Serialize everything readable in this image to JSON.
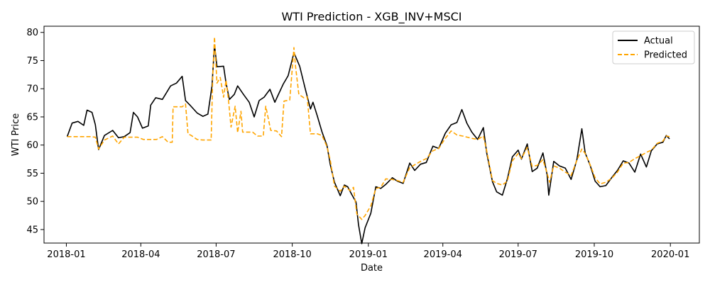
{
  "chart_data": {
    "type": "line",
    "title": "WTI Prediction - XGB_INV+MSCI",
    "xlabel": "Date",
    "ylabel": "WTI Price",
    "xlim": [
      "2017-12-05",
      "2020-02-05"
    ],
    "ylim": [
      42.6,
      81.1
    ],
    "x_ticks": [
      "2018-01",
      "2018-04",
      "2018-07",
      "2018-10",
      "2019-01",
      "2019-04",
      "2019-07",
      "2019-10",
      "2020-01"
    ],
    "y_ticks": [
      45,
      50,
      55,
      60,
      65,
      70,
      75,
      80
    ],
    "grid": false,
    "legend": {
      "position": "top-right"
    },
    "series": [
      {
        "name": "Actual",
        "color": "#000000",
        "style": "solid",
        "points": [
          [
            "2018-01-02",
            61.5
          ],
          [
            "2018-01-08",
            63.9
          ],
          [
            "2018-01-15",
            64.2
          ],
          [
            "2018-01-22",
            63.5
          ],
          [
            "2018-01-26",
            66.2
          ],
          [
            "2018-02-01",
            65.8
          ],
          [
            "2018-02-05",
            63.6
          ],
          [
            "2018-02-09",
            59.2
          ],
          [
            "2018-02-16",
            61.7
          ],
          [
            "2018-02-26",
            62.6
          ],
          [
            "2018-03-05",
            61.3
          ],
          [
            "2018-03-12",
            61.5
          ],
          [
            "2018-03-19",
            62.2
          ],
          [
            "2018-03-23",
            65.8
          ],
          [
            "2018-03-28",
            65.0
          ],
          [
            "2018-04-03",
            63.0
          ],
          [
            "2018-04-10",
            63.4
          ],
          [
            "2018-04-13",
            67.1
          ],
          [
            "2018-04-19",
            68.4
          ],
          [
            "2018-04-27",
            68.1
          ],
          [
            "2018-05-07",
            70.5
          ],
          [
            "2018-05-14",
            71.0
          ],
          [
            "2018-05-21",
            72.2
          ],
          [
            "2018-05-25",
            67.9
          ],
          [
            "2018-05-31",
            67.0
          ],
          [
            "2018-06-08",
            65.7
          ],
          [
            "2018-06-15",
            65.1
          ],
          [
            "2018-06-21",
            65.5
          ],
          [
            "2018-06-26",
            70.5
          ],
          [
            "2018-06-29",
            77.8
          ],
          [
            "2018-07-02",
            73.9
          ],
          [
            "2018-07-10",
            74.0
          ],
          [
            "2018-07-13",
            71.0
          ],
          [
            "2018-07-17",
            68.1
          ],
          [
            "2018-07-23",
            69.0
          ],
          [
            "2018-07-27",
            70.5
          ],
          [
            "2018-08-03",
            69.0
          ],
          [
            "2018-08-10",
            67.6
          ],
          [
            "2018-08-16",
            65.0
          ],
          [
            "2018-08-22",
            67.9
          ],
          [
            "2018-08-28",
            68.5
          ],
          [
            "2018-09-04",
            69.9
          ],
          [
            "2018-09-10",
            67.6
          ],
          [
            "2018-09-14",
            68.9
          ],
          [
            "2018-09-20",
            70.8
          ],
          [
            "2018-09-26",
            72.3
          ],
          [
            "2018-10-03",
            76.4
          ],
          [
            "2018-10-10",
            74.0
          ],
          [
            "2018-10-17",
            69.8
          ],
          [
            "2018-10-23",
            66.4
          ],
          [
            "2018-10-26",
            67.6
          ],
          [
            "2018-10-31",
            65.3
          ],
          [
            "2018-11-06",
            62.3
          ],
          [
            "2018-11-12",
            59.9
          ],
          [
            "2018-11-16",
            56.5
          ],
          [
            "2018-11-21",
            53.4
          ],
          [
            "2018-11-28",
            51.0
          ],
          [
            "2018-12-03",
            52.9
          ],
          [
            "2018-12-07",
            52.6
          ],
          [
            "2018-12-12",
            51.2
          ],
          [
            "2018-12-17",
            49.9
          ],
          [
            "2018-12-20",
            45.9
          ],
          [
            "2018-12-24",
            42.5
          ],
          [
            "2018-12-28",
            45.3
          ],
          [
            "2019-01-04",
            47.9
          ],
          [
            "2019-01-10",
            52.6
          ],
          [
            "2019-01-16",
            52.3
          ],
          [
            "2019-01-22",
            53.0
          ],
          [
            "2019-01-30",
            54.2
          ],
          [
            "2019-02-05",
            53.6
          ],
          [
            "2019-02-12",
            53.2
          ],
          [
            "2019-02-20",
            56.8
          ],
          [
            "2019-02-26",
            55.5
          ],
          [
            "2019-03-05",
            56.6
          ],
          [
            "2019-03-12",
            56.9
          ],
          [
            "2019-03-20",
            59.8
          ],
          [
            "2019-03-27",
            59.4
          ],
          [
            "2019-04-04",
            62.1
          ],
          [
            "2019-04-11",
            63.6
          ],
          [
            "2019-04-18",
            64.0
          ],
          [
            "2019-04-24",
            66.3
          ],
          [
            "2019-04-30",
            63.9
          ],
          [
            "2019-05-06",
            62.3
          ],
          [
            "2019-05-13",
            61.0
          ],
          [
            "2019-05-20",
            63.1
          ],
          [
            "2019-05-24",
            58.6
          ],
          [
            "2019-05-31",
            53.5
          ],
          [
            "2019-06-05",
            51.7
          ],
          [
            "2019-06-12",
            51.1
          ],
          [
            "2019-06-18",
            54.0
          ],
          [
            "2019-06-24",
            57.9
          ],
          [
            "2019-07-01",
            59.1
          ],
          [
            "2019-07-05",
            57.5
          ],
          [
            "2019-07-12",
            60.2
          ],
          [
            "2019-07-18",
            55.3
          ],
          [
            "2019-07-24",
            55.9
          ],
          [
            "2019-07-31",
            58.6
          ],
          [
            "2019-08-05",
            54.7
          ],
          [
            "2019-08-07",
            51.1
          ],
          [
            "2019-08-13",
            57.1
          ],
          [
            "2019-08-20",
            56.3
          ],
          [
            "2019-08-27",
            55.9
          ],
          [
            "2019-09-03",
            53.9
          ],
          [
            "2019-09-10",
            57.4
          ],
          [
            "2019-09-16",
            62.9
          ],
          [
            "2019-09-20",
            58.6
          ],
          [
            "2019-09-26",
            56.4
          ],
          [
            "2019-10-02",
            53.6
          ],
          [
            "2019-10-08",
            52.6
          ],
          [
            "2019-10-15",
            52.8
          ],
          [
            "2019-10-22",
            54.2
          ],
          [
            "2019-10-29",
            55.5
          ],
          [
            "2019-11-05",
            57.2
          ],
          [
            "2019-11-12",
            56.8
          ],
          [
            "2019-11-19",
            55.2
          ],
          [
            "2019-11-26",
            58.4
          ],
          [
            "2019-12-03",
            56.1
          ],
          [
            "2019-12-09",
            59.0
          ],
          [
            "2019-12-16",
            60.2
          ],
          [
            "2019-12-23",
            60.5
          ],
          [
            "2019-12-27",
            61.7
          ],
          [
            "2019-12-31",
            61.1
          ]
        ]
      },
      {
        "name": "Predicted",
        "color": "#ffa500",
        "style": "dashed",
        "points": [
          [
            "2018-01-02",
            61.5
          ],
          [
            "2018-01-30",
            61.5
          ],
          [
            "2018-02-05",
            61.4
          ],
          [
            "2018-02-09",
            59.3
          ],
          [
            "2018-02-16",
            60.9
          ],
          [
            "2018-02-26",
            61.6
          ],
          [
            "2018-03-05",
            60.2
          ],
          [
            "2018-03-12",
            61.4
          ],
          [
            "2018-03-20",
            61.4
          ],
          [
            "2018-03-28",
            61.4
          ],
          [
            "2018-04-04",
            61.0
          ],
          [
            "2018-04-20",
            61.0
          ],
          [
            "2018-04-27",
            61.5
          ],
          [
            "2018-05-04",
            60.5
          ],
          [
            "2018-05-09",
            60.5
          ],
          [
            "2018-05-10",
            66.8
          ],
          [
            "2018-05-21",
            66.8
          ],
          [
            "2018-05-25",
            67.3
          ],
          [
            "2018-05-28",
            62.0
          ],
          [
            "2018-06-01",
            61.7
          ],
          [
            "2018-06-08",
            61.0
          ],
          [
            "2018-06-15",
            60.9
          ],
          [
            "2018-06-25",
            60.9
          ],
          [
            "2018-06-27",
            72.5
          ],
          [
            "2018-06-29",
            79.2
          ],
          [
            "2018-07-02",
            71.0
          ],
          [
            "2018-07-06",
            72.0
          ],
          [
            "2018-07-10",
            68.5
          ],
          [
            "2018-07-13",
            71.5
          ],
          [
            "2018-07-16",
            67.9
          ],
          [
            "2018-07-19",
            63.2
          ],
          [
            "2018-07-24",
            66.9
          ],
          [
            "2018-07-27",
            62.2
          ],
          [
            "2018-07-31",
            66.0
          ],
          [
            "2018-08-02",
            62.3
          ],
          [
            "2018-08-08",
            62.3
          ],
          [
            "2018-08-14",
            62.3
          ],
          [
            "2018-08-20",
            61.6
          ],
          [
            "2018-08-27",
            61.6
          ],
          [
            "2018-08-30",
            66.9
          ],
          [
            "2018-09-05",
            62.6
          ],
          [
            "2018-09-12",
            62.5
          ],
          [
            "2018-09-18",
            61.5
          ],
          [
            "2018-09-21",
            67.8
          ],
          [
            "2018-09-28",
            68.0
          ],
          [
            "2018-10-03",
            77.3
          ],
          [
            "2018-10-05",
            73.9
          ],
          [
            "2018-10-09",
            69.0
          ],
          [
            "2018-10-15",
            68.4
          ],
          [
            "2018-10-19",
            68.6
          ],
          [
            "2018-10-23",
            62.0
          ],
          [
            "2018-10-31",
            62.0
          ],
          [
            "2018-11-06",
            61.7
          ],
          [
            "2018-11-12",
            59.7
          ],
          [
            "2018-11-16",
            57.3
          ],
          [
            "2018-11-21",
            52.7
          ],
          [
            "2018-11-28",
            51.8
          ],
          [
            "2018-12-03",
            52.7
          ],
          [
            "2018-12-10",
            51.9
          ],
          [
            "2018-12-14",
            52.5
          ],
          [
            "2018-12-18",
            47.8
          ],
          [
            "2018-12-24",
            46.8
          ],
          [
            "2018-12-28",
            47.5
          ],
          [
            "2019-01-04",
            49.2
          ],
          [
            "2019-01-10",
            52.3
          ],
          [
            "2019-01-16",
            52.5
          ],
          [
            "2019-01-22",
            54.0
          ],
          [
            "2019-01-30",
            53.9
          ],
          [
            "2019-02-05",
            53.7
          ],
          [
            "2019-02-12",
            53.4
          ],
          [
            "2019-02-20",
            56.0
          ],
          [
            "2019-02-26",
            56.5
          ],
          [
            "2019-03-05",
            57.1
          ],
          [
            "2019-03-12",
            57.6
          ],
          [
            "2019-03-20",
            59.0
          ],
          [
            "2019-03-27",
            59.4
          ],
          [
            "2019-04-04",
            61.2
          ],
          [
            "2019-04-11",
            62.5
          ],
          [
            "2019-04-18",
            61.8
          ],
          [
            "2019-04-25",
            61.6
          ],
          [
            "2019-05-06",
            61.2
          ],
          [
            "2019-05-13",
            61.0
          ],
          [
            "2019-05-20",
            61.6
          ],
          [
            "2019-05-24",
            59.0
          ],
          [
            "2019-05-31",
            53.7
          ],
          [
            "2019-06-05",
            53.2
          ],
          [
            "2019-06-12",
            52.9
          ],
          [
            "2019-06-18",
            53.6
          ],
          [
            "2019-06-24",
            57.2
          ],
          [
            "2019-07-01",
            58.5
          ],
          [
            "2019-07-05",
            57.6
          ],
          [
            "2019-07-12",
            59.6
          ],
          [
            "2019-07-18",
            56.2
          ],
          [
            "2019-07-24",
            56.4
          ],
          [
            "2019-07-31",
            57.4
          ],
          [
            "2019-08-05",
            55.0
          ],
          [
            "2019-08-08",
            53.4
          ],
          [
            "2019-08-13",
            56.3
          ],
          [
            "2019-08-20",
            55.9
          ],
          [
            "2019-08-27",
            55.2
          ],
          [
            "2019-09-03",
            54.6
          ],
          [
            "2019-09-10",
            57.3
          ],
          [
            "2019-09-16",
            59.3
          ],
          [
            "2019-09-20",
            58.5
          ],
          [
            "2019-09-26",
            56.5
          ],
          [
            "2019-10-02",
            54.2
          ],
          [
            "2019-10-08",
            53.1
          ],
          [
            "2019-10-15",
            53.4
          ],
          [
            "2019-10-22",
            54.1
          ],
          [
            "2019-10-29",
            55.2
          ],
          [
            "2019-11-05",
            56.8
          ],
          [
            "2019-11-12",
            56.9
          ],
          [
            "2019-11-19",
            57.6
          ],
          [
            "2019-11-26",
            58.1
          ],
          [
            "2019-12-03",
            58.7
          ],
          [
            "2019-12-09",
            59.1
          ],
          [
            "2019-12-16",
            60.3
          ],
          [
            "2019-12-23",
            60.7
          ],
          [
            "2019-12-27",
            61.6
          ],
          [
            "2019-12-31",
            61.5
          ]
        ]
      }
    ]
  }
}
